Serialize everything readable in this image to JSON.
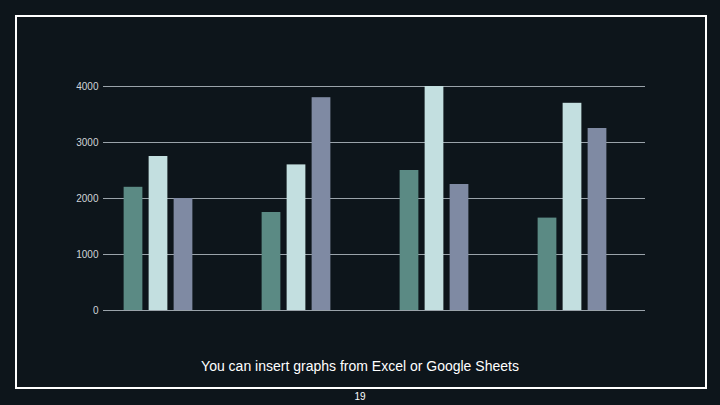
{
  "chart_data": {
    "type": "bar",
    "categories": [
      null,
      null,
      null,
      null
    ],
    "series": [
      {
        "color": "#5b8a84",
        "values": [
          2200,
          1750,
          2500,
          1650
        ]
      },
      {
        "color": "#c3dfe0",
        "values": [
          2750,
          2600,
          4000,
          3700
        ]
      },
      {
        "color": "#7f8aa3",
        "values": [
          2000,
          3800,
          2250,
          3250
        ]
      }
    ],
    "ylim": [
      0,
      4000
    ],
    "yticks": [
      0,
      1000,
      2000,
      3000,
      4000
    ],
    "grid": true,
    "tick_labels": "y",
    "caption": "You can insert graphs from Excel or Google Sheets"
  },
  "slide": {
    "page_number": "19"
  }
}
